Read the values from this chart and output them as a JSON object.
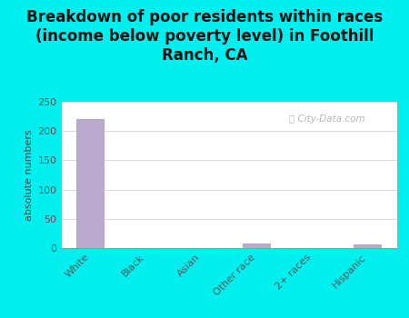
{
  "categories": [
    "White",
    "Black",
    "Asian",
    "Other race",
    "2+ races",
    "Hispanic"
  ],
  "values": [
    220,
    0,
    0,
    7,
    0,
    6
  ],
  "bar_color": "#b9a9cc",
  "title": "Breakdown of poor residents within races\n(income below poverty level) in Foothill\nRanch, CA",
  "ylabel": "absolute numbers",
  "ylim": [
    0,
    250
  ],
  "yticks": [
    0,
    50,
    100,
    150,
    200,
    250
  ],
  "background_color": "#00f0f0",
  "plot_bg_top": "#ddf0dd",
  "plot_bg_bottom": "#f8fff8",
  "grid_color": "#ccbbcc",
  "watermark": "City-Data.com",
  "title_fontsize": 12,
  "label_fontsize": 8,
  "tick_fontsize": 8,
  "title_color": "#111111"
}
